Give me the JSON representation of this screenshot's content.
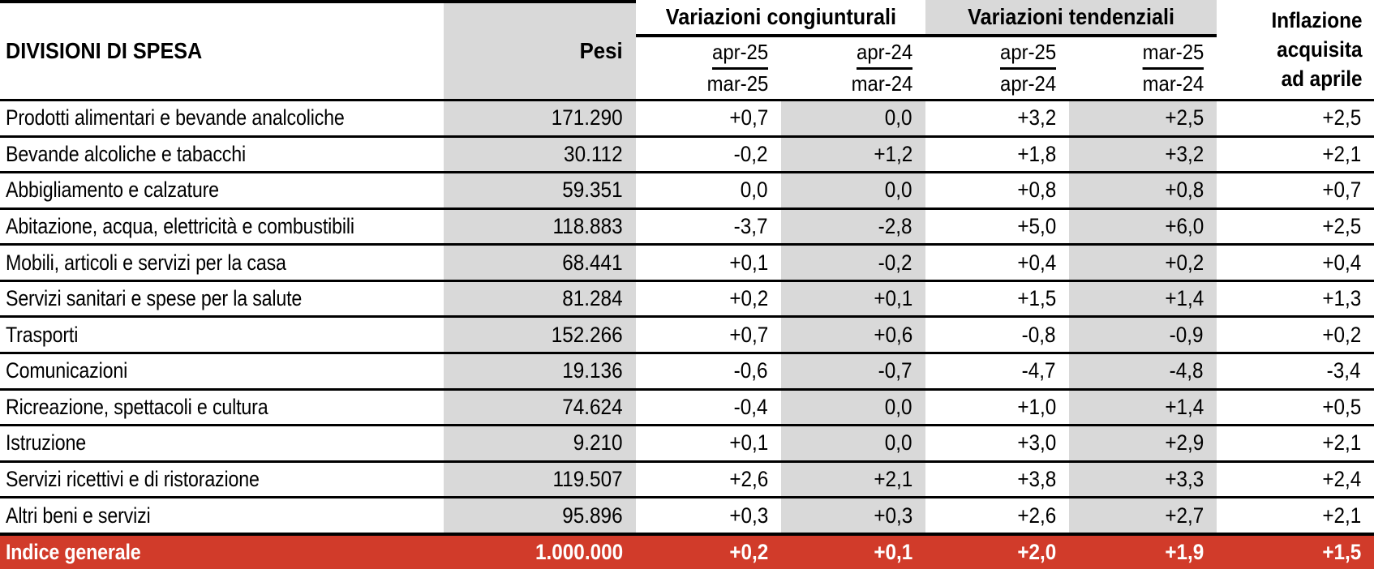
{
  "table": {
    "title_col": "DIVISIONI DI SPESA",
    "pesi_label": "Pesi",
    "groups": [
      {
        "label": "Variazioni congiunturali",
        "cols": [
          {
            "top": "apr-25",
            "bottom": "mar-25"
          },
          {
            "top": "apr-24",
            "bottom": "mar-24"
          }
        ]
      },
      {
        "label": "Variazioni tendenziali",
        "cols": [
          {
            "top": "apr-25",
            "bottom": "apr-24"
          },
          {
            "top": "mar-25",
            "bottom": "mar-24"
          }
        ]
      }
    ],
    "inflazione_header": [
      "Inflazione",
      "acquisita",
      "ad aprile"
    ],
    "rows": [
      {
        "name": "Prodotti alimentari e bevande analcoliche",
        "pesi": "171.290",
        "v1": "+0,7",
        "v2": "0,0",
        "v3": "+3,2",
        "v4": "+2,5",
        "v5": "+2,5"
      },
      {
        "name": "Bevande alcoliche e tabacchi",
        "pesi": "30.112",
        "v1": "-0,2",
        "v2": "+1,2",
        "v3": "+1,8",
        "v4": "+3,2",
        "v5": "+2,1"
      },
      {
        "name": "Abbigliamento e calzature",
        "pesi": "59.351",
        "v1": "0,0",
        "v2": "0,0",
        "v3": "+0,8",
        "v4": "+0,8",
        "v5": "+0,7"
      },
      {
        "name": "Abitazione, acqua, elettricità e combustibili",
        "pesi": "118.883",
        "v1": "-3,7",
        "v2": "-2,8",
        "v3": "+5,0",
        "v4": "+6,0",
        "v5": "+2,5"
      },
      {
        "name": "Mobili, articoli e servizi per la casa",
        "pesi": "68.441",
        "v1": "+0,1",
        "v2": "-0,2",
        "v3": "+0,4",
        "v4": "+0,2",
        "v5": "+0,4"
      },
      {
        "name": "Servizi sanitari e spese per la salute",
        "pesi": "81.284",
        "v1": "+0,2",
        "v2": "+0,1",
        "v3": "+1,5",
        "v4": "+1,4",
        "v5": "+1,3"
      },
      {
        "name": "Trasporti",
        "pesi": "152.266",
        "v1": "+0,7",
        "v2": "+0,6",
        "v3": "-0,8",
        "v4": "-0,9",
        "v5": "+0,2"
      },
      {
        "name": "Comunicazioni",
        "pesi": "19.136",
        "v1": "-0,6",
        "v2": "-0,7",
        "v3": "-4,7",
        "v4": "-4,8",
        "v5": "-3,4"
      },
      {
        "name": "Ricreazione, spettacoli e cultura",
        "pesi": "74.624",
        "v1": "-0,4",
        "v2": "0,0",
        "v3": "+1,0",
        "v4": "+1,4",
        "v5": "+0,5"
      },
      {
        "name": "Istruzione",
        "pesi": "9.210",
        "v1": "+0,1",
        "v2": "0,0",
        "v3": "+3,0",
        "v4": "+2,9",
        "v5": "+2,1"
      },
      {
        "name": "Servizi ricettivi e di ristorazione",
        "pesi": "119.507",
        "v1": "+2,6",
        "v2": "+2,1",
        "v3": "+3,8",
        "v4": "+3,3",
        "v5": "+2,4"
      },
      {
        "name": "Altri beni e servizi",
        "pesi": "95.896",
        "v1": "+0,3",
        "v2": "+0,3",
        "v3": "+2,6",
        "v4": "+2,7",
        "v5": "+2,1"
      }
    ],
    "total_row": {
      "name": "Indice generale",
      "pesi": "1.000.000",
      "v1": "+0,2",
      "v2": "+0,1",
      "v3": "+2,0",
      "v4": "+1,9",
      "v5": "+1,5"
    }
  },
  "colors": {
    "accent_red": "#d13b2a",
    "stripe_gray": "#d9d9d9"
  }
}
